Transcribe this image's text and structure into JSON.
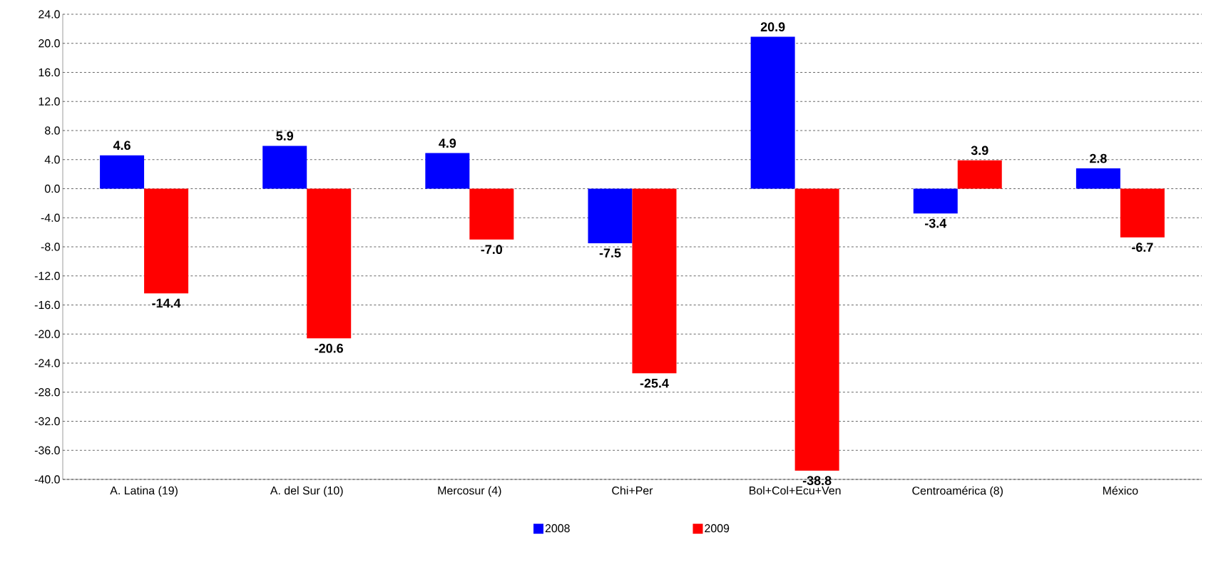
{
  "chart_data": {
    "type": "bar",
    "categories": [
      "A. Latina (19)",
      "A. del Sur (10)",
      "Mercosur (4)",
      "Chi+Per",
      "Bol+Col+Ecu+Ven",
      "Centroamérica (8)",
      "México"
    ],
    "series": [
      {
        "name": "2008",
        "color": "#0000ff",
        "values": [
          4.6,
          5.9,
          4.9,
          -7.5,
          20.9,
          -3.4,
          2.8
        ],
        "value_labels": [
          "4.6",
          "5.9",
          "4.9",
          "-7.5",
          "20.9",
          "-3.4",
          "2.8"
        ]
      },
      {
        "name": "2009",
        "color": "#ff0000",
        "values": [
          -14.4,
          -20.6,
          -7.0,
          -25.4,
          -38.8,
          3.9,
          -6.7
        ],
        "value_labels": [
          "-14.4",
          "-20.6",
          "-7.0",
          "-25.4",
          "-38.8",
          "3.9",
          "-6.7"
        ]
      }
    ],
    "ylim": [
      -40,
      24
    ],
    "yticks": [
      {
        "value": -40,
        "label": "-40.0"
      },
      {
        "value": -36,
        "label": "-36.0"
      },
      {
        "value": -32,
        "label": "-32.0"
      },
      {
        "value": -28,
        "label": "-28.0"
      },
      {
        "value": -24,
        "label": "-24.0"
      },
      {
        "value": -20,
        "label": "-20.0"
      },
      {
        "value": -16,
        "label": "-16.0"
      },
      {
        "value": -12,
        "label": "-12.0"
      },
      {
        "value": -8,
        "label": "-8.0"
      },
      {
        "value": -4,
        "label": "-4.0"
      },
      {
        "value": 0,
        "label": "0.0"
      },
      {
        "value": 4,
        "label": "4.0"
      },
      {
        "value": 8,
        "label": "8.0"
      },
      {
        "value": 12,
        "label": "12.0"
      },
      {
        "value": 16,
        "label": "16.0"
      },
      {
        "value": 20,
        "label": "20.0"
      },
      {
        "value": 24,
        "label": "24.0"
      }
    ],
    "grid": "y",
    "legend": "bottom"
  }
}
